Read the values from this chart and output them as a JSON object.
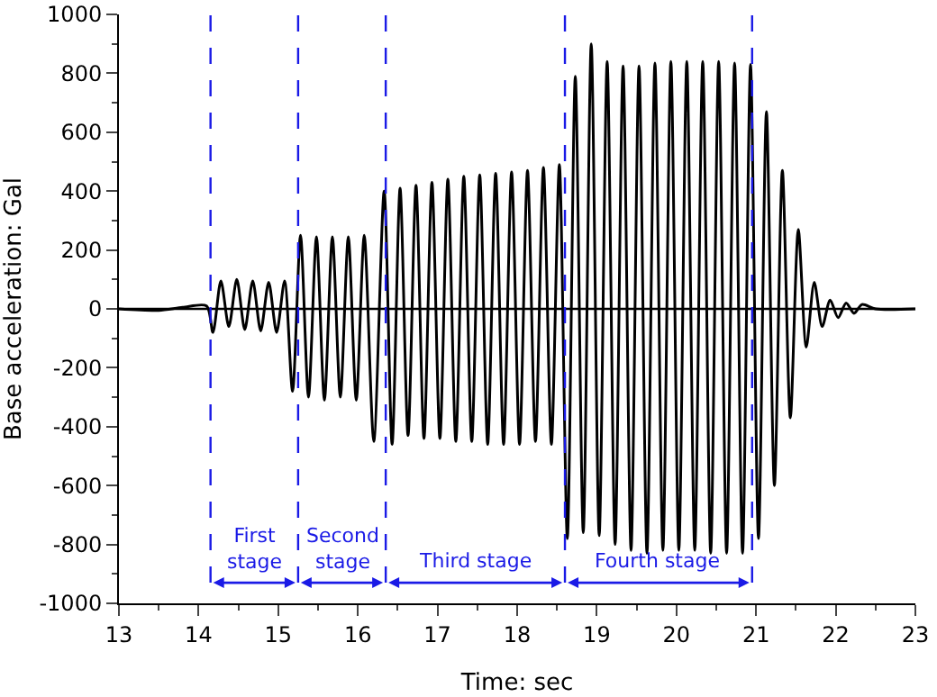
{
  "chart_data": {
    "type": "line",
    "xlabel": "Time: sec",
    "ylabel": "Base acceleration: Gal",
    "x": [
      13.0,
      13.5,
      13.8,
      14.1,
      14.18,
      14.28,
      14.38,
      14.48,
      14.58,
      14.68,
      14.78,
      14.88,
      14.98,
      15.08,
      15.18,
      15.28,
      15.38,
      15.48,
      15.58,
      15.68,
      15.78,
      15.88,
      15.98,
      16.08,
      16.2,
      16.33,
      16.43,
      16.53,
      16.63,
      16.73,
      16.83,
      16.93,
      17.03,
      17.13,
      17.23,
      17.33,
      17.43,
      17.53,
      17.63,
      17.73,
      17.83,
      17.93,
      18.03,
      18.13,
      18.23,
      18.33,
      18.43,
      18.53,
      18.63,
      18.73,
      18.83,
      18.93,
      19.03,
      19.13,
      19.23,
      19.33,
      19.43,
      19.53,
      19.63,
      19.73,
      19.83,
      19.93,
      20.03,
      20.13,
      20.23,
      20.33,
      20.43,
      20.53,
      20.63,
      20.73,
      20.83,
      20.93,
      21.03,
      21.13,
      21.23,
      21.33,
      21.43,
      21.53,
      21.63,
      21.73,
      21.83,
      21.93,
      22.03,
      22.13,
      22.23,
      22.33,
      22.5,
      23.0
    ],
    "series": [
      {
        "color": "#000000",
        "values": [
          0,
          -5,
          5,
          10,
          -80,
          95,
          -60,
          100,
          -70,
          95,
          -75,
          90,
          -80,
          95,
          -280,
          250,
          -300,
          245,
          -310,
          245,
          -300,
          245,
          -310,
          250,
          -450,
          400,
          -460,
          410,
          -430,
          420,
          -440,
          430,
          -440,
          440,
          -450,
          450,
          -450,
          455,
          -460,
          460,
          -460,
          465,
          -460,
          470,
          -450,
          480,
          -460,
          490,
          -780,
          790,
          -760,
          900,
          -770,
          840,
          -800,
          825,
          -820,
          825,
          -830,
          835,
          -820,
          840,
          -820,
          840,
          -820,
          840,
          -830,
          840,
          -830,
          835,
          -830,
          830,
          -780,
          670,
          -600,
          470,
          -370,
          270,
          -130,
          90,
          -60,
          30,
          -30,
          20,
          -15,
          15,
          0,
          0
        ]
      }
    ],
    "xlim": [
      13,
      23
    ],
    "xticks": [
      13,
      14,
      15,
      16,
      17,
      18,
      19,
      20,
      21,
      22,
      23
    ],
    "ylim": [
      -1000,
      1000
    ],
    "yticks": [
      -1000,
      -800,
      -600,
      -400,
      -200,
      0,
      200,
      400,
      600,
      800,
      1000
    ],
    "grid": false,
    "line_style": "solid",
    "marker": "none",
    "ref_lines": [
      {
        "axis": "y",
        "value": 0,
        "color": "#000000",
        "line_style": "solid"
      },
      {
        "axis": "x",
        "value": 14.15,
        "color": "#1a1ae6",
        "line_style": "dashed"
      },
      {
        "axis": "x",
        "value": 15.25,
        "color": "#1a1ae6",
        "line_style": "dashed"
      },
      {
        "axis": "x",
        "value": 16.35,
        "color": "#1a1ae6",
        "line_style": "dashed"
      },
      {
        "axis": "x",
        "value": 18.6,
        "color": "#1a1ae6",
        "line_style": "dashed"
      },
      {
        "axis": "x",
        "value": 20.95,
        "color": "#1a1ae6",
        "line_style": "dashed"
      }
    ],
    "annotations": [
      "First stage",
      "Second stage",
      "Third stage",
      "Fourth stage"
    ]
  }
}
